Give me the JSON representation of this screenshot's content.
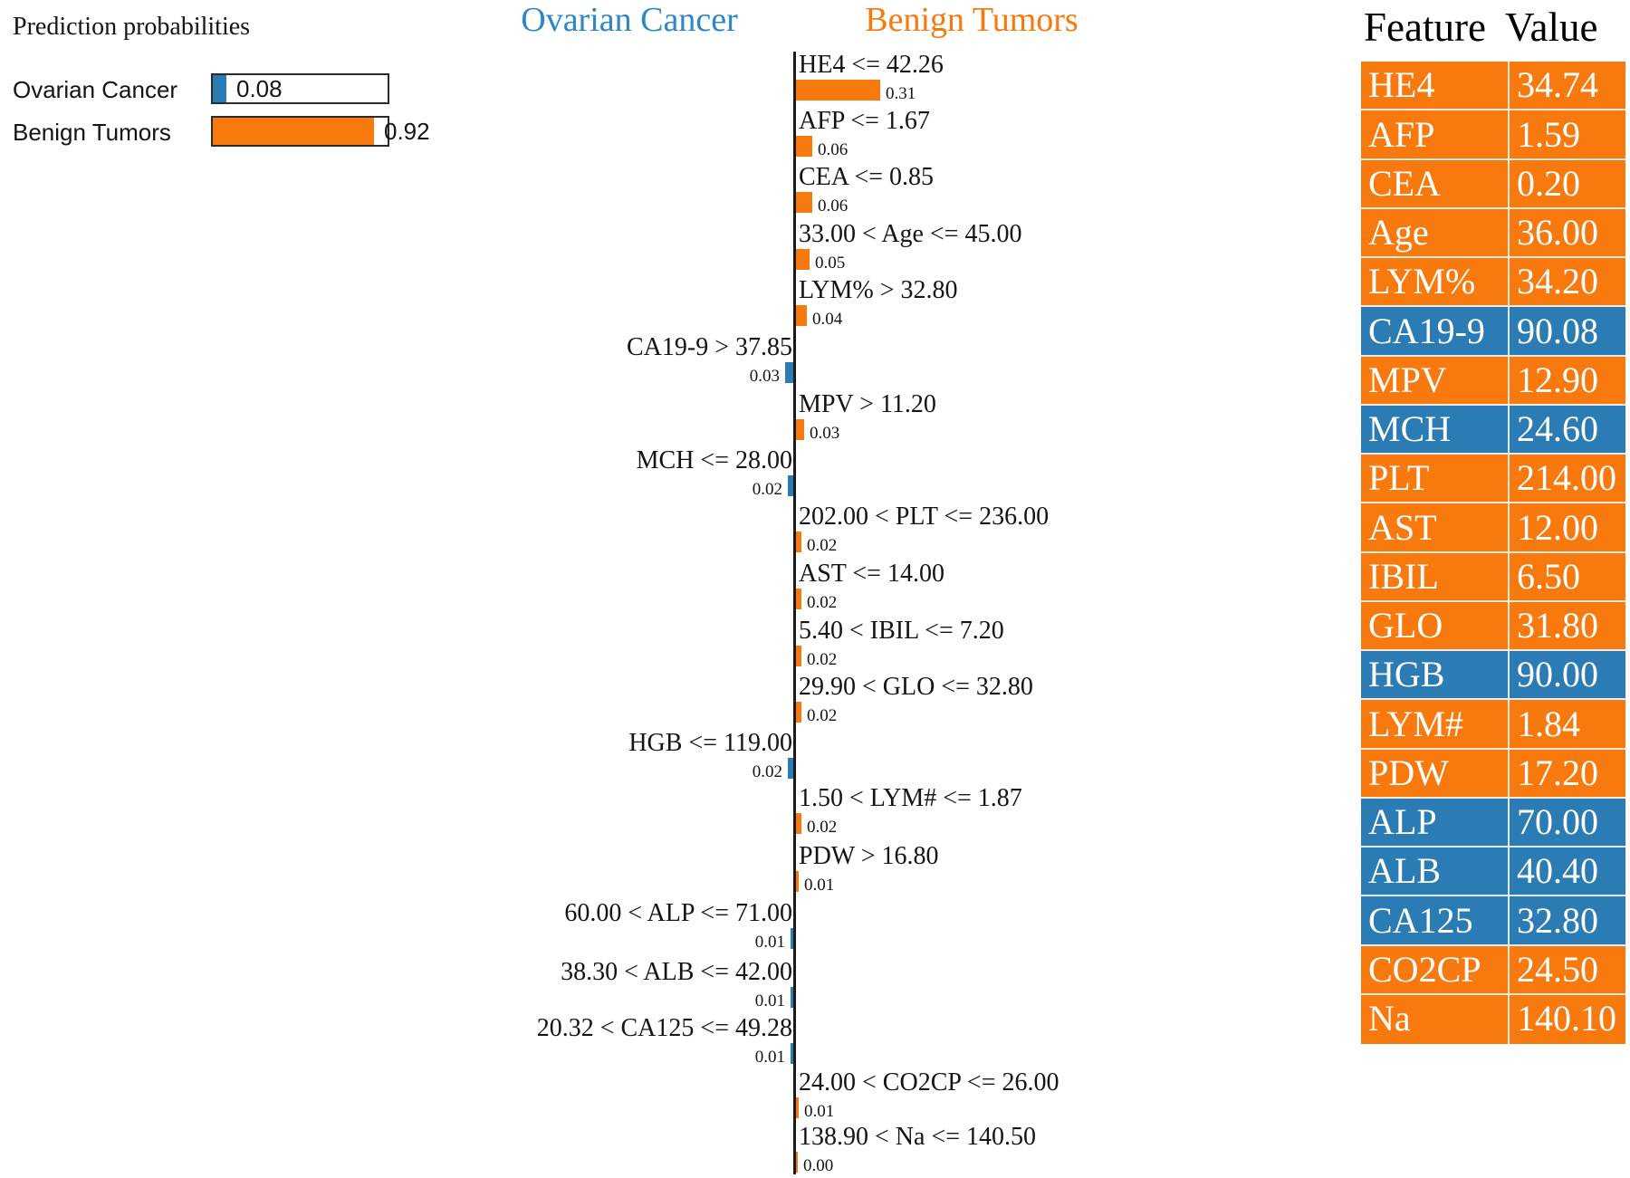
{
  "colors": {
    "ovarian_blue": "#2B7CB4",
    "benign_orange": "#F8790E",
    "header_blue": "#2E86C4",
    "header_orange": "#F8790E"
  },
  "prediction": {
    "title": "Prediction probabilities",
    "classes": [
      {
        "label": "Ovarian Cancer",
        "prob": 0.08,
        "prob_label": "0.08",
        "class": "ovarian"
      },
      {
        "label": "Benign Tumors",
        "prob": 0.92,
        "prob_label": "0.92",
        "class": "benign"
      }
    ]
  },
  "explanation": {
    "left_header": "Ovarian Cancer",
    "right_header": "Benign Tumors",
    "rows": [
      {
        "rule": "HE4 <= 42.26",
        "weight": 0.31,
        "weight_label": "0.31",
        "class": "benign"
      },
      {
        "rule": "AFP <= 1.67",
        "weight": 0.06,
        "weight_label": "0.06",
        "class": "benign"
      },
      {
        "rule": "CEA <= 0.85",
        "weight": 0.06,
        "weight_label": "0.06",
        "class": "benign"
      },
      {
        "rule": "33.00 < Age <= 45.00",
        "weight": 0.05,
        "weight_label": "0.05",
        "class": "benign"
      },
      {
        "rule": "LYM% > 32.80",
        "weight": 0.04,
        "weight_label": "0.04",
        "class": "benign"
      },
      {
        "rule": "CA19-9 > 37.85",
        "weight": 0.03,
        "weight_label": "0.03",
        "class": "ovarian"
      },
      {
        "rule": "MPV > 11.20",
        "weight": 0.03,
        "weight_label": "0.03",
        "class": "benign"
      },
      {
        "rule": "MCH <= 28.00",
        "weight": 0.02,
        "weight_label": "0.02",
        "class": "ovarian"
      },
      {
        "rule": "202.00 < PLT <= 236.00",
        "weight": 0.02,
        "weight_label": "0.02",
        "class": "benign"
      },
      {
        "rule": "AST <= 14.00",
        "weight": 0.02,
        "weight_label": "0.02",
        "class": "benign"
      },
      {
        "rule": "5.40 < IBIL <= 7.20",
        "weight": 0.02,
        "weight_label": "0.02",
        "class": "benign"
      },
      {
        "rule": "29.90 < GLO <= 32.80",
        "weight": 0.02,
        "weight_label": "0.02",
        "class": "benign"
      },
      {
        "rule": "HGB <= 119.00",
        "weight": 0.02,
        "weight_label": "0.02",
        "class": "ovarian"
      },
      {
        "rule": "1.50 < LYM# <= 1.87",
        "weight": 0.02,
        "weight_label": "0.02",
        "class": "benign"
      },
      {
        "rule": "PDW > 16.80",
        "weight": 0.01,
        "weight_label": "0.01",
        "class": "benign"
      },
      {
        "rule": "60.00 < ALP <= 71.00",
        "weight": 0.01,
        "weight_label": "0.01",
        "class": "ovarian"
      },
      {
        "rule": "38.30 < ALB <= 42.00",
        "weight": 0.01,
        "weight_label": "0.01",
        "class": "ovarian"
      },
      {
        "rule": "20.32 < CA125 <= 49.28",
        "weight": 0.01,
        "weight_label": "0.01",
        "class": "ovarian"
      },
      {
        "rule": "24.00 < CO2CP <= 26.00",
        "weight": 0.01,
        "weight_label": "0.01",
        "class": "benign"
      },
      {
        "rule": "138.90 < Na <= 140.50",
        "weight": 0.0,
        "weight_label": "0.00",
        "class": "benign"
      }
    ]
  },
  "feature_table": {
    "header": {
      "feature": "Feature",
      "value": "Value"
    },
    "rows": [
      {
        "feature": "HE4",
        "value": "34.74",
        "class": "benign"
      },
      {
        "feature": "AFP",
        "value": "1.59",
        "class": "benign"
      },
      {
        "feature": "CEA",
        "value": "0.20",
        "class": "benign"
      },
      {
        "feature": "Age",
        "value": "36.00",
        "class": "benign"
      },
      {
        "feature": "LYM%",
        "value": "34.20",
        "class": "benign"
      },
      {
        "feature": "CA19-9",
        "value": "90.08",
        "class": "ovarian"
      },
      {
        "feature": "MPV",
        "value": "12.90",
        "class": "benign"
      },
      {
        "feature": "MCH",
        "value": "24.60",
        "class": "ovarian"
      },
      {
        "feature": "PLT",
        "value": "214.00",
        "class": "benign"
      },
      {
        "feature": "AST",
        "value": "12.00",
        "class": "benign"
      },
      {
        "feature": "IBIL",
        "value": "6.50",
        "class": "benign"
      },
      {
        "feature": "GLO",
        "value": "31.80",
        "class": "benign"
      },
      {
        "feature": "HGB",
        "value": "90.00",
        "class": "ovarian"
      },
      {
        "feature": "LYM#",
        "value": "1.84",
        "class": "benign"
      },
      {
        "feature": "PDW",
        "value": "17.20",
        "class": "benign"
      },
      {
        "feature": "ALP",
        "value": "70.00",
        "class": "ovarian"
      },
      {
        "feature": "ALB",
        "value": "40.40",
        "class": "ovarian"
      },
      {
        "feature": "CA125",
        "value": "32.80",
        "class": "ovarian"
      },
      {
        "feature": "CO2CP",
        "value": "24.50",
        "class": "benign"
      },
      {
        "feature": "Na",
        "value": "140.10",
        "class": "benign"
      }
    ]
  },
  "chart_data": [
    {
      "type": "bar",
      "title": "Prediction probabilities",
      "orientation": "horizontal",
      "categories": [
        "Ovarian Cancer",
        "Benign Tumors"
      ],
      "values": [
        0.08,
        0.92
      ],
      "colors": [
        "#2B7CB4",
        "#F8790E"
      ],
      "xlim": [
        0,
        1
      ],
      "grid": false
    },
    {
      "type": "bar",
      "title": "LIME local explanation weights (negative = Ovarian Cancer / blue, positive = Benign Tumors / orange)",
      "orientation": "horizontal",
      "left_class": "Ovarian Cancer",
      "right_class": "Benign Tumors",
      "categories": [
        "HE4 <= 42.26",
        "AFP <= 1.67",
        "CEA <= 0.85",
        "33.00 < Age <= 45.00",
        "LYM% > 32.80",
        "CA19-9 > 37.85",
        "MPV > 11.20",
        "MCH <= 28.00",
        "202.00 < PLT <= 236.00",
        "AST <= 14.00",
        "5.40 < IBIL <= 7.20",
        "29.90 < GLO <= 32.80",
        "HGB <= 119.00",
        "1.50 < LYM# <= 1.87",
        "PDW > 16.80",
        "60.00 < ALP <= 71.00",
        "38.30 < ALB <= 42.00",
        "20.32 < CA125 <= 49.28",
        "24.00 < CO2CP <= 26.00",
        "138.90 < Na <= 140.50"
      ],
      "values": [
        0.31,
        0.06,
        0.06,
        0.05,
        0.04,
        -0.03,
        0.03,
        -0.02,
        0.02,
        0.02,
        0.02,
        0.02,
        -0.02,
        0.02,
        0.01,
        -0.01,
        -0.01,
        -0.01,
        0.01,
        0.0
      ],
      "xlim": [
        -0.31,
        0.31
      ],
      "grid": false
    },
    {
      "type": "table",
      "title": "Feature Value",
      "columns": [
        "Feature",
        "Value"
      ],
      "rows": [
        [
          "HE4",
          "34.74"
        ],
        [
          "AFP",
          "1.59"
        ],
        [
          "CEA",
          "0.20"
        ],
        [
          "Age",
          "36.00"
        ],
        [
          "LYM%",
          "34.20"
        ],
        [
          "CA19-9",
          "90.08"
        ],
        [
          "MPV",
          "12.90"
        ],
        [
          "MCH",
          "24.60"
        ],
        [
          "PLT",
          "214.00"
        ],
        [
          "AST",
          "12.00"
        ],
        [
          "IBIL",
          "6.50"
        ],
        [
          "GLO",
          "31.80"
        ],
        [
          "HGB",
          "90.00"
        ],
        [
          "LYM#",
          "1.84"
        ],
        [
          "PDW",
          "17.20"
        ],
        [
          "ALP",
          "70.00"
        ],
        [
          "ALB",
          "40.40"
        ],
        [
          "CA125",
          "32.80"
        ],
        [
          "CO2CP",
          "24.50"
        ],
        [
          "Na",
          "140.10"
        ]
      ],
      "row_colors": [
        "orange",
        "orange",
        "orange",
        "orange",
        "orange",
        "blue",
        "orange",
        "blue",
        "orange",
        "orange",
        "orange",
        "orange",
        "blue",
        "orange",
        "orange",
        "blue",
        "blue",
        "blue",
        "orange",
        "orange"
      ]
    }
  ]
}
